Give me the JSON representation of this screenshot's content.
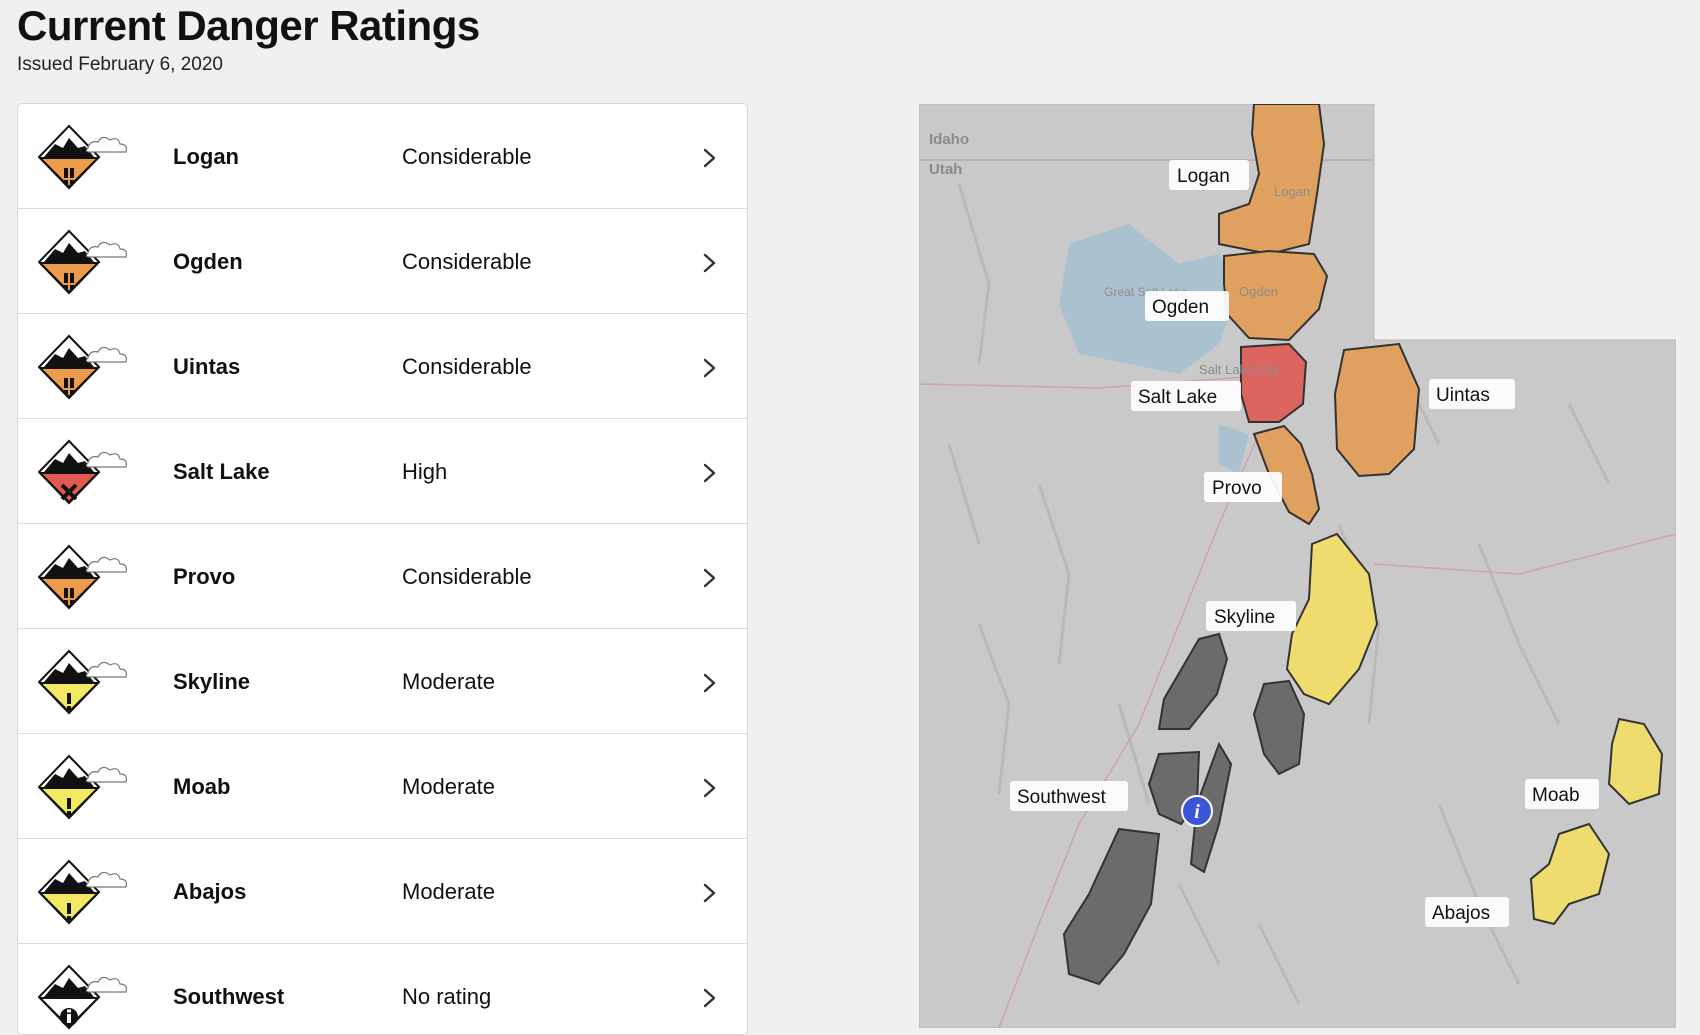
{
  "page": {
    "title": "Current Danger Ratings",
    "issued": "Issued February 6, 2020"
  },
  "colors": {
    "considerable": "#ec9a4c",
    "high": "#e05a50",
    "moderate": "#f3e861",
    "none": "#5f5f5f",
    "map_considerable": "#e0a160",
    "map_high": "#dc6560",
    "map_moderate": "#eedd6e",
    "map_none": "#6b6b6b"
  },
  "regions": [
    {
      "name": "Logan",
      "rating": "Considerable",
      "level": "considerable"
    },
    {
      "name": "Ogden",
      "rating": "Considerable",
      "level": "considerable"
    },
    {
      "name": "Uintas",
      "rating": "Considerable",
      "level": "considerable"
    },
    {
      "name": "Salt Lake",
      "rating": "High",
      "level": "high"
    },
    {
      "name": "Provo",
      "rating": "Considerable",
      "level": "considerable"
    },
    {
      "name": "Skyline",
      "rating": "Moderate",
      "level": "moderate"
    },
    {
      "name": "Moab",
      "rating": "Moderate",
      "level": "moderate"
    },
    {
      "name": "Abajos",
      "rating": "Moderate",
      "level": "moderate"
    },
    {
      "name": "Southwest",
      "rating": "No rating",
      "level": "none"
    }
  ],
  "map": {
    "state_labels": [
      "Idaho",
      "Utah"
    ],
    "city_labels": [
      "Logan",
      "Ogden",
      "Salt Lake City",
      "Great Salt Lake"
    ],
    "region_labels": [
      "Logan",
      "Ogden",
      "Salt Lake",
      "Uintas",
      "Provo",
      "Skyline",
      "Southwest",
      "Moab",
      "Abajos"
    ],
    "info_marker": "i"
  },
  "icons": {
    "row_icon": "danger-rating-diamond-icon",
    "chevron": "chevron-right-icon",
    "info": "info-marker-icon"
  }
}
